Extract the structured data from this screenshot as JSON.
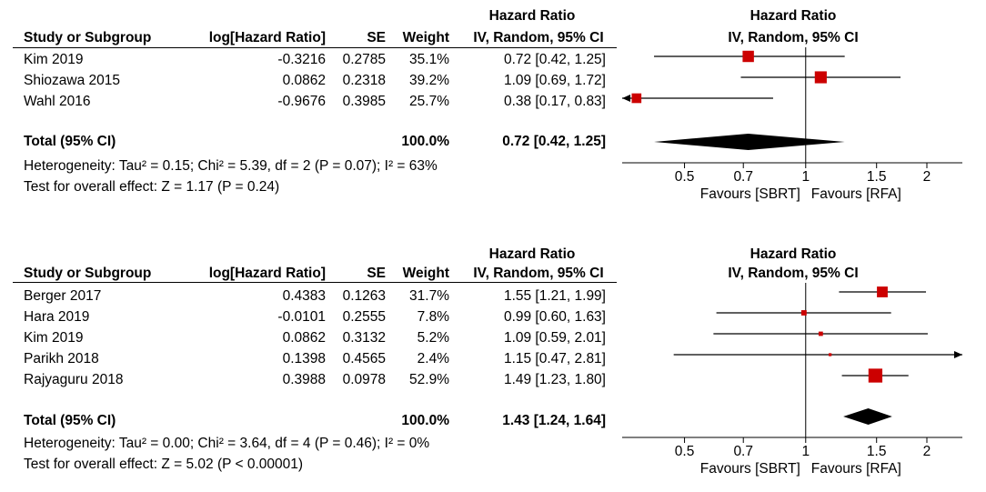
{
  "chart_data": [
    {
      "type": "forest",
      "header": {
        "col_study": "Study or Subgroup",
        "col_loghr": "log[Hazard Ratio]",
        "col_se": "SE",
        "col_weight": "Weight",
        "effect_group": "Hazard Ratio",
        "effect_method": "IV, Random, 95% CI",
        "plot_group": "Hazard Ratio",
        "plot_method": "IV, Random, 95% CI"
      },
      "studies": [
        {
          "name": "Kim 2019",
          "loghr": "-0.3216",
          "se": "0.2785",
          "weight": "35.1%",
          "weight_value": 35.1,
          "ci_text": "0.72 [0.42, 1.25]",
          "hr": 0.72,
          "lower": 0.42,
          "upper": 1.25
        },
        {
          "name": "Shiozawa 2015",
          "loghr": "0.0862",
          "se": "0.2318",
          "weight": "39.2%",
          "weight_value": 39.2,
          "ci_text": "1.09 [0.69, 1.72]",
          "hr": 1.09,
          "lower": 0.69,
          "upper": 1.72
        },
        {
          "name": "Wahl 2016",
          "loghr": "-0.9676",
          "se": "0.3985",
          "weight": "25.7%",
          "weight_value": 25.7,
          "ci_text": "0.38 [0.17, 0.83]",
          "hr": 0.38,
          "lower": 0.17,
          "upper": 0.83
        }
      ],
      "total": {
        "label": "Total (95% CI)",
        "weight": "100.0%",
        "ci_text": "0.72 [0.42, 1.25]",
        "hr": 0.72,
        "lower": 0.42,
        "upper": 1.25
      },
      "heterogeneity": "Heterogeneity: Tau² = 0.15; Chi² = 5.39, df = 2 (P = 0.07); I² = 63%",
      "overall_effect": "Test for overall effect: Z = 1.17 (P = 0.24)",
      "axis": {
        "min": 0.35,
        "max": 2.45,
        "ticks": [
          0.5,
          0.7,
          1,
          1.5,
          2
        ],
        "tick_labels": [
          "0.5",
          "0.7",
          "1",
          "1.5",
          "2"
        ],
        "scale": "log"
      },
      "favours_left": "Favours [SBRT]",
      "favours_right": "Favours [RFA]"
    },
    {
      "type": "forest",
      "header": {
        "col_study": "Study or Subgroup",
        "col_loghr": "log[Hazard Ratio]",
        "col_se": "SE",
        "col_weight": "Weight",
        "effect_group": "Hazard Ratio",
        "effect_method": "IV, Random, 95% CI",
        "plot_group": "Hazard Ratio",
        "plot_method": "IV, Random, 95% CI"
      },
      "studies": [
        {
          "name": "Berger 2017",
          "loghr": "0.4383",
          "se": "0.1263",
          "weight": "31.7%",
          "weight_value": 31.7,
          "ci_text": "1.55 [1.21, 1.99]",
          "hr": 1.55,
          "lower": 1.21,
          "upper": 1.99
        },
        {
          "name": "Hara 2019",
          "loghr": "-0.0101",
          "se": "0.2555",
          "weight": "7.8%",
          "weight_value": 7.8,
          "ci_text": "0.99 [0.60, 1.63]",
          "hr": 0.99,
          "lower": 0.6,
          "upper": 1.63
        },
        {
          "name": "Kim 2019",
          "loghr": "0.0862",
          "se": "0.3132",
          "weight": "5.2%",
          "weight_value": 5.2,
          "ci_text": "1.09 [0.59, 2.01]",
          "hr": 1.09,
          "lower": 0.59,
          "upper": 2.01
        },
        {
          "name": "Parikh 2018",
          "loghr": "0.1398",
          "se": "0.4565",
          "weight": "2.4%",
          "weight_value": 2.4,
          "ci_text": "1.15 [0.47, 2.81]",
          "hr": 1.15,
          "lower": 0.47,
          "upper": 2.81
        },
        {
          "name": "Rajyaguru 2018",
          "loghr": "0.3988",
          "se": "0.0978",
          "weight": "52.9%",
          "weight_value": 52.9,
          "ci_text": "1.49 [1.23, 1.80]",
          "hr": 1.49,
          "lower": 1.23,
          "upper": 1.8
        }
      ],
      "total": {
        "label": "Total (95% CI)",
        "weight": "100.0%",
        "ci_text": "1.43 [1.24, 1.64]",
        "hr": 1.43,
        "lower": 1.24,
        "upper": 1.64
      },
      "heterogeneity": "Heterogeneity: Tau² = 0.00; Chi² = 3.64, df = 4 (P = 0.46); I² = 0%",
      "overall_effect": "Test for overall effect: Z = 5.02 (P < 0.00001)",
      "axis": {
        "min": 0.35,
        "max": 2.45,
        "ticks": [
          0.5,
          0.7,
          1,
          1.5,
          2
        ],
        "tick_labels": [
          "0.5",
          "0.7",
          "1",
          "1.5",
          "2"
        ],
        "scale": "log"
      },
      "favours_left": "Favours [SBRT]",
      "favours_right": "Favours [RFA]"
    }
  ],
  "colors": {
    "marker": "#cc0000",
    "line": "#000000",
    "diamond": "#000000"
  }
}
